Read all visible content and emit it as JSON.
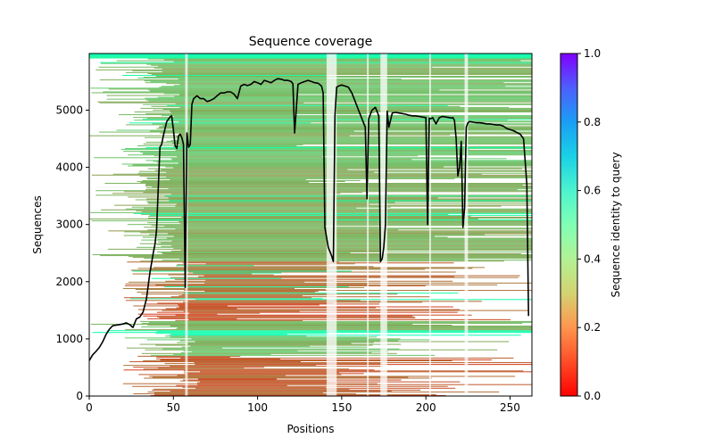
{
  "chart_data": {
    "type": "heatmap",
    "title": "Sequence coverage",
    "xlabel": "Positions",
    "ylabel": "Sequences",
    "xlim": [
      0,
      263
    ],
    "ylim": [
      0,
      5990
    ],
    "xticks": [
      0,
      50,
      100,
      150,
      200,
      250
    ],
    "yticks": [
      0,
      1000,
      2000,
      3000,
      4000,
      5000
    ],
    "grid": false,
    "colorbar": {
      "label": "Sequence identity to query",
      "range": [
        0.0,
        1.0
      ],
      "ticks": [
        0.0,
        0.2,
        0.4,
        0.6,
        0.8,
        1.0
      ],
      "tick_labels": [
        "0.0",
        "0.2",
        "0.4",
        "0.6",
        "0.8",
        "1.0"
      ],
      "colormap": "rainbow_r"
    },
    "coverage_series": {
      "name": "coverage",
      "color": "#000000",
      "x": [
        0,
        2,
        4,
        6,
        8,
        10,
        12,
        14,
        16,
        18,
        20,
        22,
        24,
        26,
        28,
        30,
        32,
        34,
        36,
        38,
        39,
        40,
        42,
        43,
        44,
        46,
        48,
        49,
        50,
        51,
        52,
        53,
        54,
        55,
        56,
        57,
        58,
        59,
        60,
        61,
        62,
        64,
        66,
        68,
        70,
        72,
        74,
        76,
        78,
        80,
        82,
        84,
        86,
        88,
        90,
        92,
        94,
        96,
        98,
        100,
        102,
        104,
        106,
        108,
        110,
        112,
        114,
        116,
        118,
        120,
        121,
        122,
        124,
        126,
        128,
        130,
        132,
        134,
        136,
        138,
        139,
        140,
        142,
        144,
        145,
        146,
        147,
        148,
        150,
        152,
        154,
        156,
        158,
        160,
        162,
        164,
        165,
        166,
        168,
        170,
        172,
        173,
        174,
        175,
        176,
        177,
        178,
        180,
        182,
        184,
        186,
        188,
        190,
        192,
        194,
        196,
        198,
        200,
        201,
        202,
        203,
        204,
        206,
        208,
        210,
        212,
        214,
        215,
        216,
        217,
        218,
        219,
        220,
        221,
        222,
        223,
        224,
        225,
        226,
        228,
        230,
        232,
        234,
        236,
        238,
        240,
        242,
        244,
        246,
        248,
        250,
        252,
        254,
        256,
        258,
        260,
        261,
        262,
        263
      ],
      "y": [
        620,
        720,
        780,
        850,
        950,
        1080,
        1170,
        1230,
        1240,
        1250,
        1260,
        1280,
        1250,
        1200,
        1350,
        1380,
        1470,
        1700,
        2150,
        2500,
        2650,
        2900,
        4350,
        4400,
        4550,
        4800,
        4880,
        4900,
        4650,
        4380,
        4330,
        4550,
        4580,
        4520,
        4400,
        1900,
        4600,
        4350,
        4400,
        5100,
        5200,
        5250,
        5200,
        5200,
        5150,
        5170,
        5200,
        5250,
        5300,
        5300,
        5320,
        5320,
        5280,
        5200,
        5420,
        5450,
        5430,
        5450,
        5500,
        5480,
        5450,
        5520,
        5500,
        5480,
        5520,
        5550,
        5540,
        5520,
        5520,
        5500,
        5460,
        4600,
        5450,
        5480,
        5500,
        5520,
        5500,
        5480,
        5470,
        5420,
        5300,
        2950,
        2600,
        2450,
        2350,
        4900,
        5400,
        5420,
        5440,
        5420,
        5400,
        5300,
        5150,
        5000,
        4850,
        4700,
        3450,
        4850,
        5000,
        5050,
        4900,
        2350,
        2400,
        2600,
        3000,
        4980,
        4700,
        4950,
        4960,
        4950,
        4940,
        4930,
        4910,
        4900,
        4900,
        4890,
        4880,
        4870,
        3000,
        4860,
        4850,
        4870,
        4760,
        4870,
        4890,
        4880,
        4870,
        4860,
        4870,
        4820,
        4500,
        3850,
        4000,
        4450,
        2950,
        3300,
        4700,
        4780,
        4800,
        4790,
        4780,
        4780,
        4770,
        4760,
        4760,
        4750,
        4740,
        4740,
        4720,
        4680,
        4660,
        4640,
        4610,
        4580,
        4500,
        3700,
        1400
      ]
    },
    "identity_band_summary": [
      {
        "seq_range": [
          5890,
          5990
        ],
        "identity": 0.48
      },
      {
        "seq_range": [
          4000,
          5890
        ],
        "identity": 0.27
      },
      {
        "seq_range": [
          2350,
          4000
        ],
        "identity": 0.24
      },
      {
        "seq_range": [
          1700,
          2350
        ],
        "identity": 0.15
      },
      {
        "seq_range": [
          1300,
          1700
        ],
        "identity": 0.12
      },
      {
        "seq_range": [
          1050,
          1150
        ],
        "identity": 0.48
      },
      {
        "seq_range": [
          700,
          1050
        ],
        "identity": 0.27
      },
      {
        "seq_range": [
          0,
          700
        ],
        "identity": 0.12
      }
    ]
  }
}
